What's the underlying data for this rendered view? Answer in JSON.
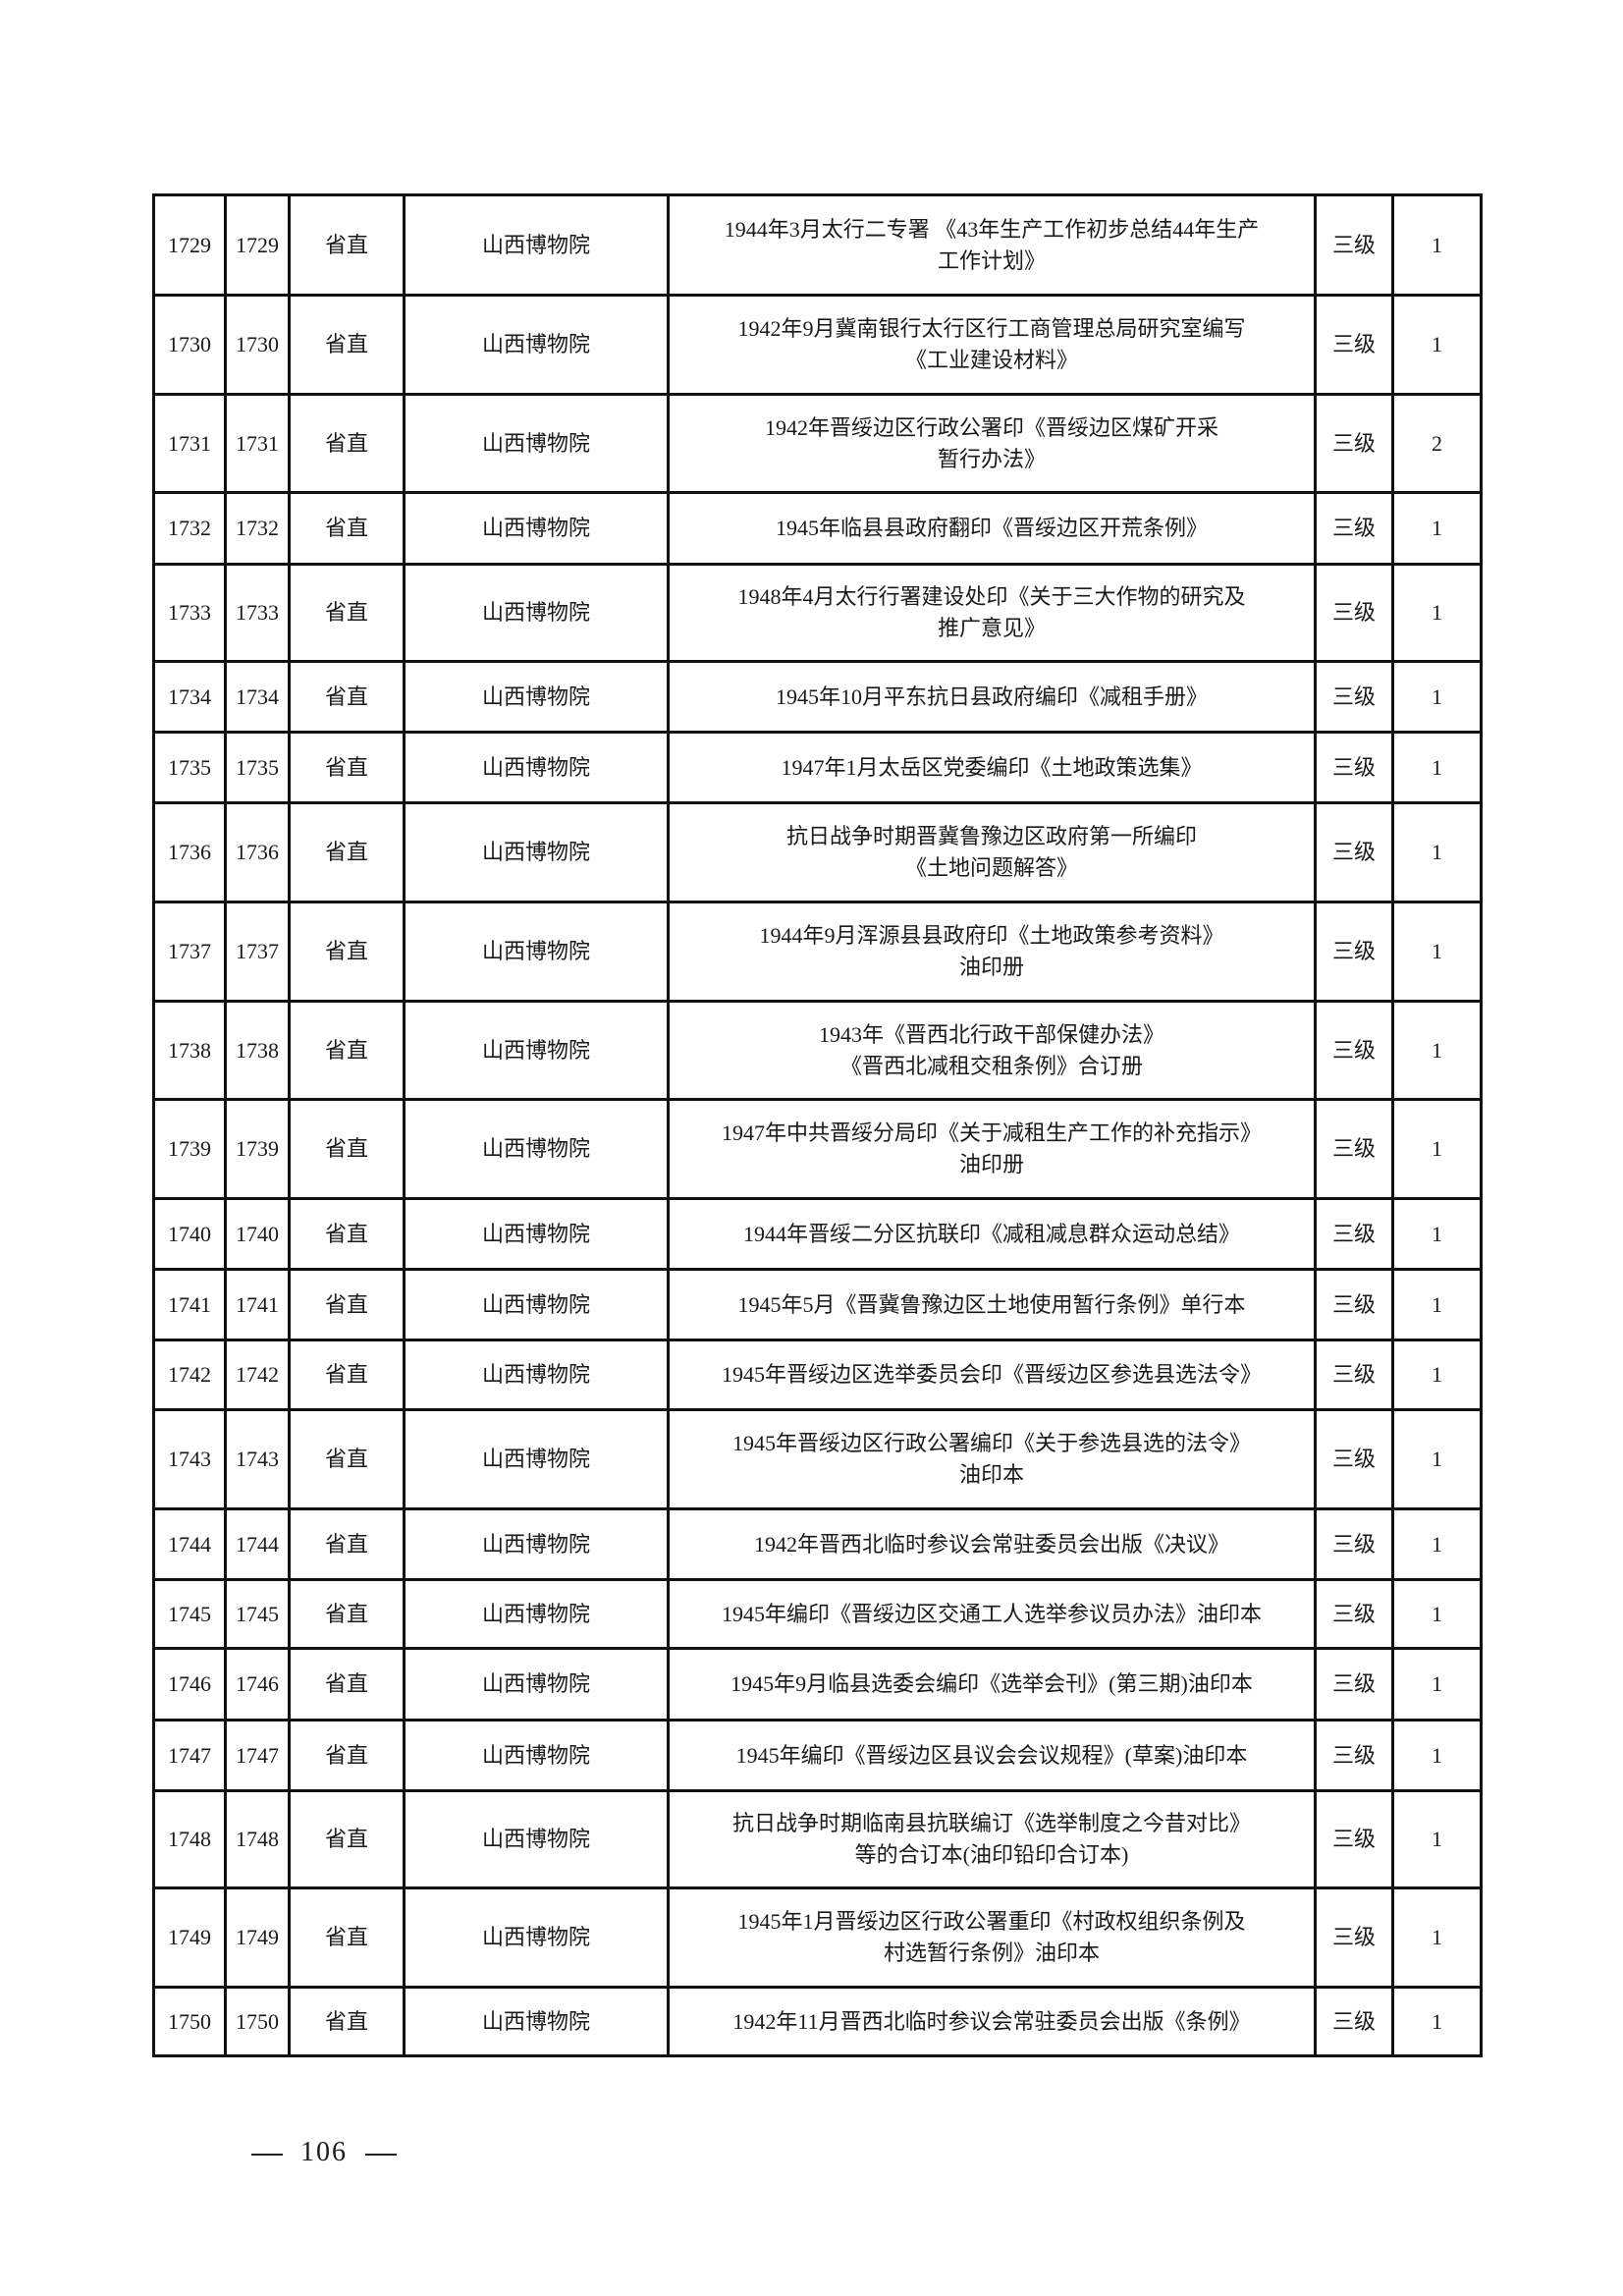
{
  "rows": [
    [
      "1729",
      "1729",
      "省直",
      "山西博物院",
      "1944年3月太行二专署 《43年生产工作初步总结44年生产\n工作计划》",
      "三级",
      "1"
    ],
    [
      "1730",
      "1730",
      "省直",
      "山西博物院",
      "1942年9月冀南银行太行区行工商管理总局研究室编写\n《工业建设材料》",
      "三级",
      "1"
    ],
    [
      "1731",
      "1731",
      "省直",
      "山西博物院",
      "1942年晋绥边区行政公署印《晋绥边区煤矿开采\n暂行办法》",
      "三级",
      "2"
    ],
    [
      "1732",
      "1732",
      "省直",
      "山西博物院",
      "1945年临县县政府翻印《晋绥边区开荒条例》",
      "三级",
      "1"
    ],
    [
      "1733",
      "1733",
      "省直",
      "山西博物院",
      "1948年4月太行行署建设处印《关于三大作物的研究及\n推广意见》",
      "三级",
      "1"
    ],
    [
      "1734",
      "1734",
      "省直",
      "山西博物院",
      "1945年10月平东抗日县政府编印《减租手册》",
      "三级",
      "1"
    ],
    [
      "1735",
      "1735",
      "省直",
      "山西博物院",
      "1947年1月太岳区党委编印《土地政策选集》",
      "三级",
      "1"
    ],
    [
      "1736",
      "1736",
      "省直",
      "山西博物院",
      "抗日战争时期晋冀鲁豫边区政府第一所编印\n《土地问题解答》",
      "三级",
      "1"
    ],
    [
      "1737",
      "1737",
      "省直",
      "山西博物院",
      "1944年9月浑源县县政府印《土地政策参考资料》\n油印册",
      "三级",
      "1"
    ],
    [
      "1738",
      "1738",
      "省直",
      "山西博物院",
      "1943年《晋西北行政干部保健办法》\n《晋西北减租交租条例》合订册",
      "三级",
      "1"
    ],
    [
      "1739",
      "1739",
      "省直",
      "山西博物院",
      "1947年中共晋绥分局印《关于减租生产工作的补充指示》\n油印册",
      "三级",
      "1"
    ],
    [
      "1740",
      "1740",
      "省直",
      "山西博物院",
      "1944年晋绥二分区抗联印《减租减息群众运动总结》",
      "三级",
      "1"
    ],
    [
      "1741",
      "1741",
      "省直",
      "山西博物院",
      "1945年5月《晋冀鲁豫边区土地使用暂行条例》单行本",
      "三级",
      "1"
    ],
    [
      "1742",
      "1742",
      "省直",
      "山西博物院",
      "1945年晋绥边区选举委员会印《晋绥边区参选县选法令》",
      "三级",
      "1"
    ],
    [
      "1743",
      "1743",
      "省直",
      "山西博物院",
      "1945年晋绥边区行政公署编印《关于参选县选的法令》\n油印本",
      "三级",
      "1"
    ],
    [
      "1744",
      "1744",
      "省直",
      "山西博物院",
      "1942年晋西北临时参议会常驻委员会出版《决议》",
      "三级",
      "1"
    ],
    [
      "1745",
      "1745",
      "省直",
      "山西博物院",
      "1945年编印《晋绥边区交通工人选举参议员办法》油印本",
      "三级",
      "1"
    ],
    [
      "1746",
      "1746",
      "省直",
      "山西博物院",
      "1945年9月临县选委会编印《选举会刊》(第三期)油印本",
      "三级",
      "1"
    ],
    [
      "1747",
      "1747",
      "省直",
      "山西博物院",
      "1945年编印《晋绥边区县议会会议规程》(草案)油印本",
      "三级",
      "1"
    ],
    [
      "1748",
      "1748",
      "省直",
      "山西博物院",
      "抗日战争时期临南县抗联编订《选举制度之今昔对比》\n等的合订本(油印铅印合订本)",
      "三级",
      "1"
    ],
    [
      "1749",
      "1749",
      "省直",
      "山西博物院",
      "1945年1月晋绥边区行政公署重印《村政权组织条例及\n村选暂行条例》油印本",
      "三级",
      "1"
    ],
    [
      "1750",
      "1750",
      "省直",
      "山西博物院",
      "1942年11月晋西北临时参议会常驻委员会出版《条例》",
      "三级",
      "1"
    ]
  ],
  "footer": {
    "page_number": "106"
  }
}
